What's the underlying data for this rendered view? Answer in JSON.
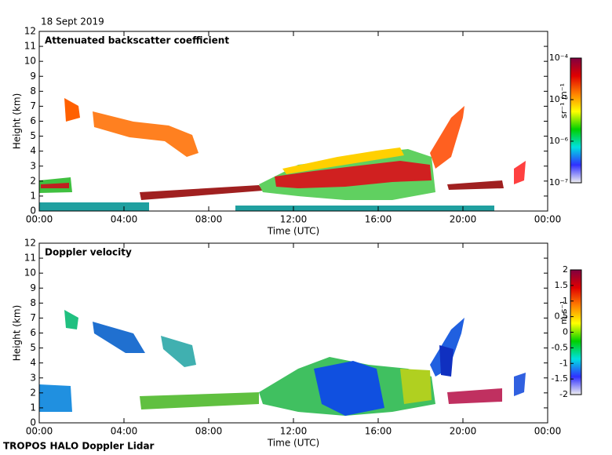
{
  "date": "18 Sept 2019",
  "footer": "TROPOS HALO Doppler Lidar",
  "chart_data": [
    {
      "type": "heatmap",
      "title": "Attenuated backscatter coefficient",
      "xlabel": "Time (UTC)",
      "ylabel": "Height (km)",
      "xlim": [
        0,
        24
      ],
      "xticks": [
        {
          "value": 0,
          "label": "00:00"
        },
        {
          "value": 4,
          "label": "04:00"
        },
        {
          "value": 8,
          "label": "08:00"
        },
        {
          "value": 12,
          "label": "12:00"
        },
        {
          "value": 16,
          "label": "16:00"
        },
        {
          "value": 20,
          "label": "20:00"
        },
        {
          "value": 24,
          "label": "00:00"
        }
      ],
      "ylim": [
        0,
        12
      ],
      "yticks": [
        0,
        1,
        2,
        3,
        4,
        5,
        6,
        7,
        8,
        9,
        10,
        11,
        12
      ],
      "colorbar": {
        "label": "sr⁻¹ m⁻¹",
        "log": true,
        "clim": [
          -7,
          -4
        ],
        "ticks": [
          {
            "value": -7,
            "label": "10⁻⁷"
          },
          {
            "value": -6,
            "label": "10⁻⁶"
          },
          {
            "value": -5,
            "label": "10⁻⁵"
          },
          {
            "value": -4,
            "label": "10⁻⁴"
          }
        ],
        "colors": [
          "#f0f0f0",
          "#3030ff",
          "#00e0e0",
          "#00d000",
          "#ffff00",
          "#ff8000",
          "#e00000",
          "#800040"
        ]
      }
    },
    {
      "type": "heatmap",
      "title": "Doppler velocity",
      "xlabel": "Time (UTC)",
      "ylabel": "Height (km)",
      "xlim": [
        0,
        24
      ],
      "xticks": [
        {
          "value": 0,
          "label": "00:00"
        },
        {
          "value": 4,
          "label": "04:00"
        },
        {
          "value": 8,
          "label": "08:00"
        },
        {
          "value": 12,
          "label": "12:00"
        },
        {
          "value": 16,
          "label": "16:00"
        },
        {
          "value": 20,
          "label": "20:00"
        },
        {
          "value": 24,
          "label": "00:00"
        }
      ],
      "ylim": [
        0,
        12
      ],
      "yticks": [
        0,
        1,
        2,
        3,
        4,
        5,
        6,
        7,
        8,
        9,
        10,
        11,
        12
      ],
      "colorbar": {
        "label": "m s⁻¹",
        "log": false,
        "clim": [
          -2,
          2
        ],
        "ticks": [
          -2,
          -1.5,
          -1,
          -0.5,
          0,
          0.5,
          1,
          1.5,
          2
        ],
        "colors": [
          "#f0f0f0",
          "#3030ff",
          "#00e0e0",
          "#00d000",
          "#ffff00",
          "#ff8000",
          "#e00000",
          "#800040"
        ]
      }
    }
  ]
}
